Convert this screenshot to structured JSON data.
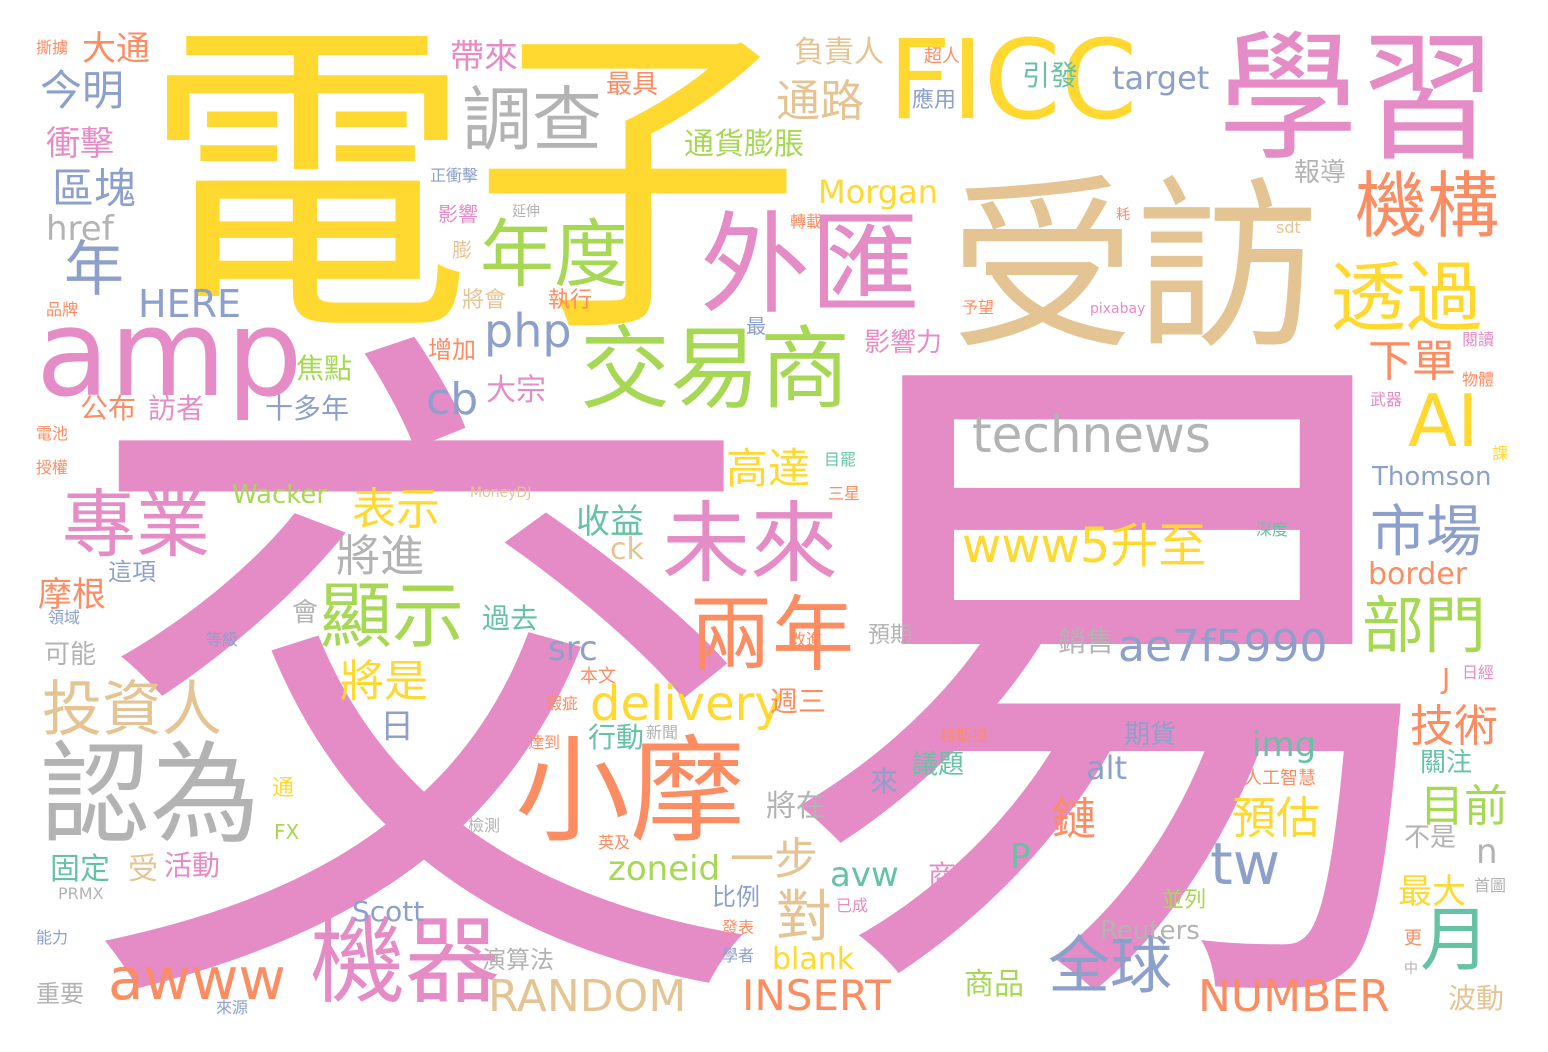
{
  "palette": {
    "pink": "#E58BC5",
    "yellow": "#FFD92F",
    "tan": "#E5C494",
    "green": "#A6D854",
    "orange": "#FC8D62",
    "teal": "#66C2A5",
    "blue": "#8DA0CB",
    "gray": "#B3B3B3"
  },
  "words": {
    "jiaoyi": "交易",
    "dianzi": "電子",
    "shoufang": "受訪",
    "xuexi": "學習",
    "ficc": "FICC",
    "amp": "amp",
    "waihui": "外匯",
    "jiaoyishang": "交易商",
    "xiaomo": "小摩",
    "renwei": "認為",
    "jiqi": "機器",
    "weilai": "未來",
    "liangnian": "兩年",
    "technews": "technews",
    "jigou": "機構",
    "touguo": "透過",
    "tiaocha": "調查",
    "niandu": "年度",
    "zhuanye": "專業",
    "xianshi": "顯示",
    "touziren": "投資人",
    "www5": "www5升至",
    "ae7f": "ae7f5990",
    "shichang": "市場",
    "bumen": "部門",
    "ai": "AI",
    "awww": "awww",
    "random": "RANDOM",
    "insert": "INSERT",
    "number": "NUMBER",
    "delivery": "delivery",
    "quanqiu": "全球",
    "yue": "月",
    "tw": "tw",
    "nian": "年",
    "jinming": "今明",
    "datong": "大通",
    "qukuai": "區塊",
    "chongji": "衝擊",
    "href": "href",
    "here": "HERE",
    "php": "php",
    "cb": "cb",
    "gongbu": "公布",
    "fangzhe": "訪者",
    "shiduonian": "十多年",
    "jiaodian": "焦點",
    "dazong": "大宗",
    "zengjia": "增加",
    "biaoshi": "表示",
    "jiangjin": "將進",
    "jiangshi": "將是",
    "ri": "日",
    "wacker": "Wacker",
    "moneydj": "MoneyDJ",
    "shouyi": "收益",
    "ck": "ck",
    "gaoda": "高達",
    "morgan": "Morgan",
    "tonglu": "通路",
    "fuzeren": "負責人",
    "daibai": "帶來",
    "zuiju": "最具",
    "tonghuo": "通貨膨脹",
    "target1": "target",
    "yinfa": "引發",
    "chaoren": "超人",
    "yingyong": "應用",
    "baodao": "報導",
    "xiadan": "下單",
    "jishu": "技術",
    "mubiao": "目前",
    "yugu": "預估",
    "lian": "鏈",
    "img": "img",
    "alt": "alt",
    "src": "src",
    "zoneid": "zoneid",
    "yibu": "一步",
    "dui": "對",
    "avw": "avw",
    "blank": "blank",
    "scott": "Scott",
    "reuters": "Reuters",
    "shangpin": "商品",
    "shangwu": "商務",
    "thomson": "Thomson",
    "border": "border",
    "zuida": "最大",
    "bodong": "波動",
    "guanzhu": "關注",
    "bushi": "不是",
    "qihuo": "期貨",
    "yiti": "議題",
    "lai": "來",
    "xiaoshou": "銷售",
    "yuqi": "預期",
    "guoqu": "過去",
    "hui": "會",
    "huodong": "活動",
    "xingdong": "行動",
    "zhouSan": "週三",
    "jiangzai": "將在",
    "bili": "比例",
    "yanSuanFa": "演算法",
    "mogen": "摩根",
    "zhexiang": "這項",
    "keneng": "可能",
    "guding": "固定",
    "shou": "受",
    "zhongyao": "重要",
    "tong": "通",
    "fx": "FX",
    "p": "P",
    "n": "n",
    "j": "J",
    "zhixing": "執行",
    "jianghui": "將會",
    "yingxiangli": "影響力",
    "zui": "最",
    "yingxiang": "影響",
    "peng": "膨",
    "dianchi": "電池",
    "shouquan": "授權",
    "pinpai": "品牌",
    "suohe": "撕擄",
    "zhengchongji": "正衝擊",
    "yanshen": "延伸",
    "nengli": "能力",
    "laiyuan": "來源",
    "xuezhe": "學者",
    "fabiao": "發表",
    "yicheng": "已成",
    "binglie": "並列",
    "gengN": "更",
    "sdt": "sdt",
    "pixabay": "pixabay",
    "yuwang": "予望",
    "yuedu": "閱讀",
    "wuti": "物體",
    "wuqi": "武器",
    "riJing": "日經",
    "zhuyi": "目罷",
    "sanxing": "三星",
    "shendu": "深度",
    "tesila": "特斯拉",
    "rengong": "人工智慧",
    "jiance": "檢測",
    "yingji": "英及",
    "dengji": "等級",
    "lingyu": "領域",
    "benwen": "本文",
    "xinwen": "新聞",
    "xiaozhan": "瑕疵",
    "dadao": "達到",
    "gaijin": "改進",
    "zhuanzai": "轉載",
    "shoutu": "首圖",
    "prmx": "PRMX",
    "ke": "課",
    "jiyi": "耗",
    "zhongBig": "中"
  }
}
